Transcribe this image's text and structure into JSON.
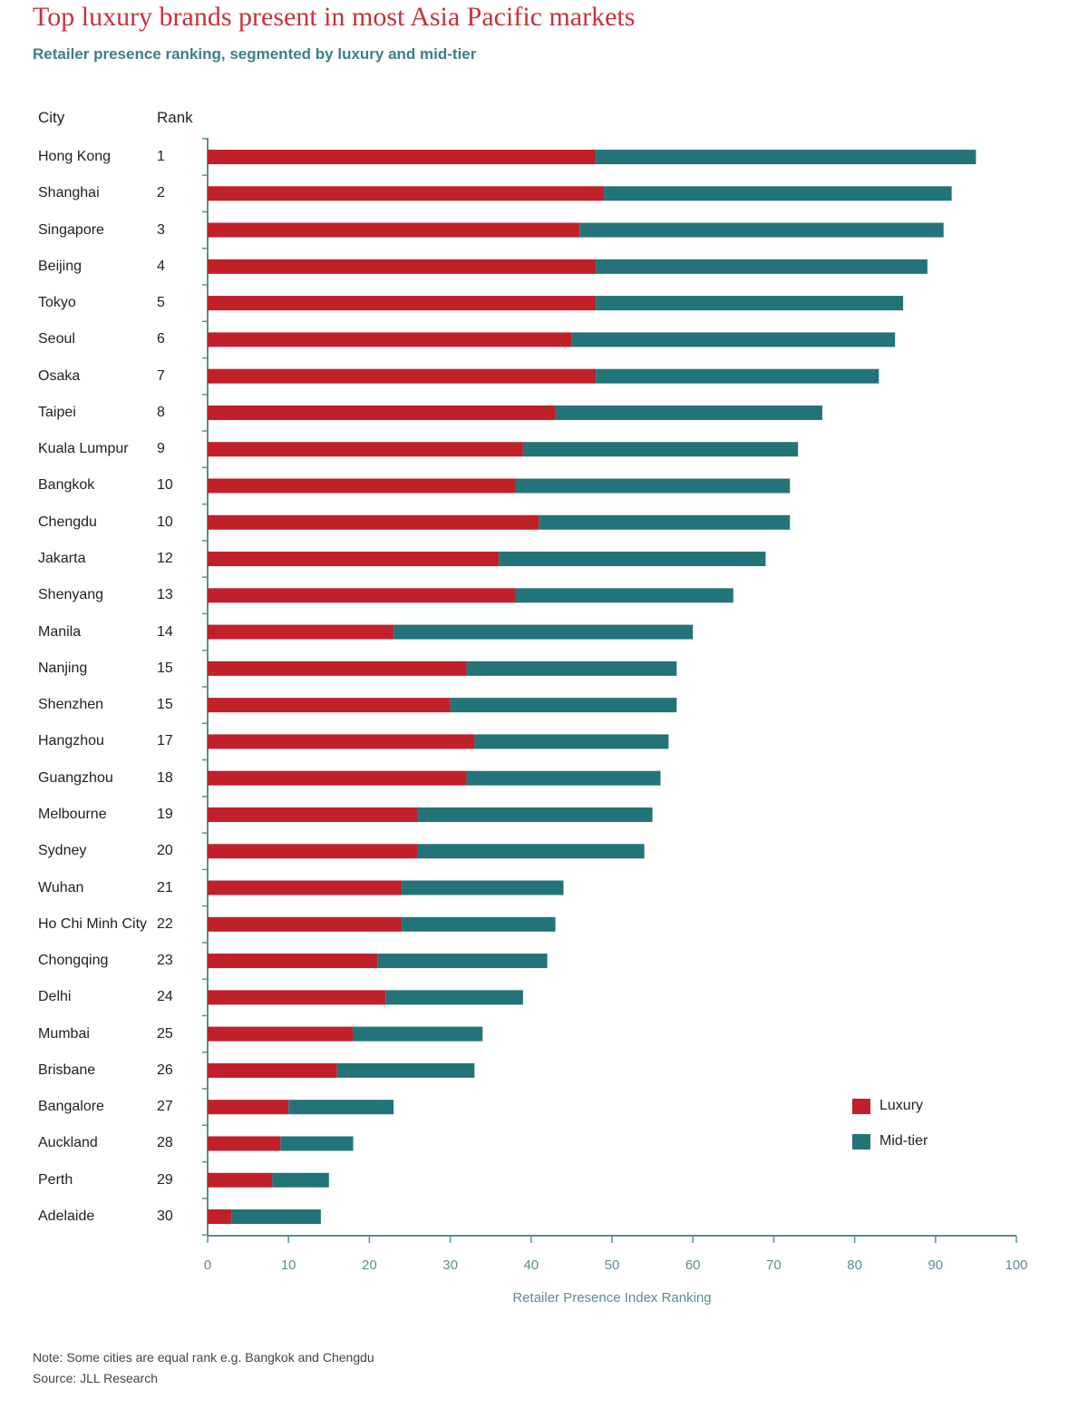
{
  "header": {
    "title": "Top luxury brands present in most Asia Pacific markets",
    "subtitle": "Retailer presence ranking, segmented by luxury and mid-tier",
    "city_col": "City",
    "rank_col": "Rank"
  },
  "colors": {
    "luxury": "#c0202a",
    "midtier": "#237479",
    "axis": "#5b8e93"
  },
  "chart_data": {
    "type": "bar",
    "orientation": "horizontal",
    "stacked": true,
    "categories": [
      "Hong Kong",
      "Shanghai",
      "Singapore",
      "Beijing",
      "Tokyo",
      "Seoul",
      "Osaka",
      "Taipei",
      "Kuala Lumpur",
      "Bangkok",
      "Chengdu",
      "Jakarta",
      "Shenyang",
      "Manila",
      "Nanjing",
      "Shenzhen",
      "Hangzhou",
      "Guangzhou",
      "Melbourne",
      "Sydney",
      "Wuhan",
      "Ho Chi Minh City",
      "Chongqing",
      "Delhi",
      "Mumbai",
      "Brisbane",
      "Bangalore",
      "Auckland",
      "Perth",
      "Adelaide"
    ],
    "ranks": [
      "1",
      "2",
      "3",
      "4",
      "5",
      "6",
      "7",
      "8",
      "9",
      "10",
      "10",
      "12",
      "13",
      "14",
      "15",
      "15",
      "17",
      "18",
      "19",
      "20",
      "21",
      "22",
      "23",
      "24",
      "25",
      "26",
      "27",
      "28",
      "29",
      "30"
    ],
    "series": [
      {
        "name": "Luxury",
        "values": [
          48,
          49,
          46,
          48,
          48,
          45,
          48,
          43,
          39,
          38,
          41,
          36,
          38,
          23,
          32,
          30,
          33,
          32,
          26,
          26,
          24,
          24,
          21,
          22,
          18,
          16,
          10,
          9,
          8,
          3
        ]
      },
      {
        "name": "Mid-tier",
        "values": [
          47,
          43,
          45,
          41,
          38,
          40,
          35,
          33,
          34,
          34,
          31,
          33,
          27,
          37,
          26,
          28,
          24,
          24,
          29,
          28,
          20,
          19,
          21,
          17,
          16,
          17,
          13,
          9,
          7,
          11
        ]
      }
    ],
    "xlim": [
      0,
      100
    ],
    "xticks": [
      "0",
      "10",
      "20",
      "30",
      "40",
      "50",
      "60",
      "70",
      "80",
      "90",
      "100"
    ],
    "xlabel": "Retailer Presence Index Ranking",
    "legend_position": "bottom-right"
  },
  "footer": {
    "note": "Note: Some cities are equal rank e.g. Bangkok and Chengdu",
    "source": "Source: JLL Research"
  }
}
